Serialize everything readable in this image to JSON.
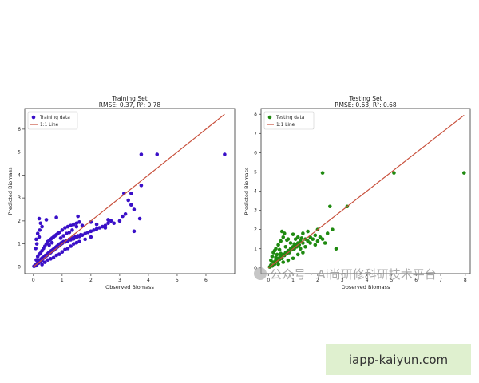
{
  "chart_data": [
    {
      "type": "scatter",
      "title": "Training Set",
      "subtitle": "RMSE: 0.37, R²: 0.78",
      "xlabel": "Observed Biomass",
      "ylabel": "Predicted Biomass",
      "xlim": [
        -0.3,
        7.0
      ],
      "ylim": [
        -0.3,
        6.9
      ],
      "xticks": [
        0,
        1,
        2,
        3,
        4,
        5,
        6
      ],
      "yticks": [
        0,
        1,
        2,
        3,
        4,
        5,
        6
      ],
      "legend_position": "top-left",
      "series": [
        {
          "name": "Training data",
          "kind": "points",
          "color": "#3a10c8",
          "points": [
            [
              0.02,
              0.02
            ],
            [
              0.05,
              0.06
            ],
            [
              0.08,
              0.05
            ],
            [
              0.1,
              0.12
            ],
            [
              0.12,
              0.1
            ],
            [
              0.15,
              0.18
            ],
            [
              0.18,
              0.16
            ],
            [
              0.2,
              0.22
            ],
            [
              0.22,
              0.3
            ],
            [
              0.25,
              0.25
            ],
            [
              0.28,
              0.35
            ],
            [
              0.3,
              0.28
            ],
            [
              0.32,
              0.4
            ],
            [
              0.35,
              0.38
            ],
            [
              0.38,
              0.45
            ],
            [
              0.4,
              0.42
            ],
            [
              0.42,
              0.5
            ],
            [
              0.45,
              0.48
            ],
            [
              0.48,
              0.55
            ],
            [
              0.5,
              0.52
            ],
            [
              0.52,
              0.6
            ],
            [
              0.55,
              0.58
            ],
            [
              0.58,
              0.65
            ],
            [
              0.6,
              0.62
            ],
            [
              0.62,
              0.7
            ],
            [
              0.65,
              0.68
            ],
            [
              0.68,
              0.75
            ],
            [
              0.7,
              0.72
            ],
            [
              0.72,
              0.8
            ],
            [
              0.75,
              0.78
            ],
            [
              0.78,
              0.85
            ],
            [
              0.8,
              0.82
            ],
            [
              0.82,
              0.9
            ],
            [
              0.85,
              0.88
            ],
            [
              0.88,
              0.95
            ],
            [
              0.9,
              0.92
            ],
            [
              0.92,
              1.0
            ],
            [
              0.95,
              0.98
            ],
            [
              0.98,
              1.05
            ],
            [
              1.0,
              1.02
            ],
            [
              1.05,
              1.1
            ],
            [
              1.1,
              1.08
            ],
            [
              1.15,
              1.15
            ],
            [
              1.2,
              1.12
            ],
            [
              1.25,
              1.2
            ],
            [
              1.3,
              1.18
            ],
            [
              1.35,
              1.25
            ],
            [
              1.4,
              1.22
            ],
            [
              1.45,
              1.3
            ],
            [
              1.5,
              1.28
            ],
            [
              1.55,
              1.35
            ],
            [
              1.6,
              1.32
            ],
            [
              1.65,
              1.4
            ],
            [
              1.7,
              1.38
            ],
            [
              1.8,
              1.45
            ],
            [
              1.9,
              1.5
            ],
            [
              2.0,
              1.55
            ],
            [
              2.1,
              1.6
            ],
            [
              2.2,
              1.65
            ],
            [
              2.3,
              1.7
            ],
            [
              2.4,
              1.75
            ],
            [
              2.5,
              1.8
            ],
            [
              2.6,
              1.9
            ],
            [
              2.7,
              2.0
            ],
            [
              0.1,
              0.3
            ],
            [
              0.15,
              0.45
            ],
            [
              0.2,
              0.55
            ],
            [
              0.25,
              0.6
            ],
            [
              0.3,
              0.7
            ],
            [
              0.35,
              0.8
            ],
            [
              0.4,
              0.9
            ],
            [
              0.45,
              1.0
            ],
            [
              0.5,
              1.1
            ],
            [
              0.55,
              1.15
            ],
            [
              0.6,
              1.2
            ],
            [
              0.65,
              1.25
            ],
            [
              0.7,
              1.3
            ],
            [
              0.75,
              1.35
            ],
            [
              0.8,
              1.4
            ],
            [
              0.85,
              1.45
            ],
            [
              0.9,
              1.5
            ],
            [
              1.0,
              1.6
            ],
            [
              1.1,
              1.7
            ],
            [
              1.2,
              1.75
            ],
            [
              1.3,
              1.8
            ],
            [
              1.4,
              1.85
            ],
            [
              1.5,
              1.9
            ],
            [
              1.6,
              1.95
            ],
            [
              0.3,
              0.1
            ],
            [
              0.4,
              0.2
            ],
            [
              0.5,
              0.3
            ],
            [
              0.6,
              0.35
            ],
            [
              0.7,
              0.4
            ],
            [
              0.8,
              0.5
            ],
            [
              0.9,
              0.55
            ],
            [
              1.0,
              0.65
            ],
            [
              1.1,
              0.75
            ],
            [
              1.2,
              0.8
            ],
            [
              1.3,
              0.9
            ],
            [
              1.4,
              1.0
            ],
            [
              1.5,
              1.05
            ],
            [
              1.6,
              1.1
            ],
            [
              1.8,
              1.2
            ],
            [
              2.0,
              1.3
            ],
            [
              0.08,
              0.8
            ],
            [
              0.12,
              1.0
            ],
            [
              0.1,
              1.2
            ],
            [
              0.2,
              1.3
            ],
            [
              0.15,
              1.45
            ],
            [
              0.22,
              1.6
            ],
            [
              0.3,
              1.75
            ],
            [
              0.25,
              1.9
            ],
            [
              0.2,
              2.1
            ],
            [
              0.45,
              2.05
            ],
            [
              0.8,
              2.15
            ],
            [
              1.55,
              2.2
            ],
            [
              1.5,
              1.75
            ],
            [
              1.7,
              1.8
            ],
            [
              2.0,
              1.95
            ],
            [
              2.2,
              1.85
            ],
            [
              2.5,
              1.7
            ],
            [
              2.8,
              1.9
            ],
            [
              3.0,
              2.0
            ],
            [
              3.1,
              2.2
            ],
            [
              3.2,
              2.3
            ],
            [
              3.5,
              2.5
            ],
            [
              3.4,
              2.7
            ],
            [
              3.3,
              2.9
            ],
            [
              2.6,
              2.05
            ],
            [
              3.7,
              2.1
            ],
            [
              3.5,
              1.55
            ],
            [
              3.15,
              3.2
            ],
            [
              3.4,
              3.2
            ],
            [
              3.75,
              3.55
            ],
            [
              3.75,
              4.9
            ],
            [
              4.3,
              4.9
            ],
            [
              6.65,
              4.9
            ],
            [
              0.55,
              0.95
            ],
            [
              0.65,
              1.05
            ],
            [
              0.95,
              1.25
            ],
            [
              1.05,
              1.35
            ],
            [
              1.15,
              1.45
            ],
            [
              1.25,
              1.5
            ],
            [
              1.35,
              1.6
            ]
          ]
        },
        {
          "name": "1:1 Line",
          "kind": "line",
          "color": "#c8503c",
          "points": [
            [
              0,
              0
            ],
            [
              6.65,
              6.65
            ]
          ]
        }
      ]
    },
    {
      "type": "scatter",
      "title": "Testing Set",
      "subtitle": "RMSE: 0.63, R²: 0.68",
      "xlabel": "Observed Biomass",
      "ylabel": "Predicted Biomass",
      "xlim": [
        -0.3,
        8.2
      ],
      "ylim": [
        -0.3,
        8.3
      ],
      "xticks": [
        0,
        1,
        2,
        3,
        4,
        5,
        6,
        7,
        8
      ],
      "yticks": [
        0,
        1,
        2,
        3,
        4,
        5,
        6,
        7,
        8
      ],
      "legend_position": "top-left",
      "series": [
        {
          "name": "Testing data",
          "kind": "points",
          "color": "#1f8a10",
          "points": [
            [
              0.05,
              0.05
            ],
            [
              0.1,
              0.15
            ],
            [
              0.15,
              0.1
            ],
            [
              0.2,
              0.3
            ],
            [
              0.25,
              0.2
            ],
            [
              0.3,
              0.4
            ],
            [
              0.35,
              0.35
            ],
            [
              0.4,
              0.5
            ],
            [
              0.45,
              0.45
            ],
            [
              0.5,
              0.6
            ],
            [
              0.55,
              0.5
            ],
            [
              0.6,
              0.7
            ],
            [
              0.65,
              0.65
            ],
            [
              0.7,
              0.8
            ],
            [
              0.75,
              0.75
            ],
            [
              0.8,
              0.9
            ],
            [
              0.85,
              0.8
            ],
            [
              0.9,
              1.0
            ],
            [
              0.95,
              0.95
            ],
            [
              1.0,
              1.1
            ],
            [
              1.05,
              1.0
            ],
            [
              1.1,
              1.2
            ],
            [
              1.15,
              1.1
            ],
            [
              1.2,
              1.3
            ],
            [
              1.25,
              1.2
            ],
            [
              1.3,
              1.4
            ],
            [
              1.4,
              1.3
            ],
            [
              1.5,
              1.5
            ],
            [
              1.6,
              1.4
            ],
            [
              1.7,
              1.6
            ],
            [
              1.8,
              1.5
            ],
            [
              1.9,
              1.7
            ],
            [
              2.0,
              1.4
            ],
            [
              2.1,
              1.6
            ],
            [
              2.2,
              1.5
            ],
            [
              2.3,
              1.3
            ],
            [
              0.2,
              0.8
            ],
            [
              0.3,
              1.0
            ],
            [
              0.4,
              1.2
            ],
            [
              0.5,
              1.4
            ],
            [
              0.6,
              1.6
            ],
            [
              0.55,
              1.9
            ],
            [
              0.65,
              1.8
            ],
            [
              0.8,
              1.5
            ],
            [
              1.0,
              1.75
            ],
            [
              1.2,
              1.6
            ],
            [
              1.4,
              1.8
            ],
            [
              1.6,
              1.9
            ],
            [
              0.4,
              0.2
            ],
            [
              0.6,
              0.3
            ],
            [
              0.8,
              0.4
            ],
            [
              1.0,
              0.5
            ],
            [
              1.2,
              0.7
            ],
            [
              1.4,
              0.8
            ],
            [
              0.15,
              0.6
            ],
            [
              0.25,
              0.9
            ],
            [
              0.35,
              0.7
            ],
            [
              0.7,
              1.1
            ],
            [
              0.9,
              1.3
            ],
            [
              1.1,
              1.5
            ],
            [
              1.3,
              1.0
            ],
            [
              1.5,
              1.1
            ],
            [
              1.7,
              1.3
            ],
            [
              1.9,
              1.2
            ],
            [
              2.0,
              2.0
            ],
            [
              2.4,
              1.8
            ],
            [
              2.6,
              2.0
            ],
            [
              2.5,
              3.2
            ],
            [
              2.2,
              4.95
            ],
            [
              2.75,
              1.0
            ],
            [
              3.2,
              3.2
            ],
            [
              5.1,
              4.95
            ],
            [
              7.95,
              4.95
            ],
            [
              0.1,
              0.4
            ],
            [
              0.45,
              0.95
            ],
            [
              0.75,
              1.45
            ],
            [
              1.05,
              1.25
            ],
            [
              1.35,
              1.55
            ],
            [
              0.3,
              0.55
            ],
            [
              0.5,
              0.75
            ]
          ]
        },
        {
          "name": "1:1 Line",
          "kind": "line",
          "color": "#c8503c",
          "points": [
            [
              0,
              0
            ],
            [
              7.95,
              7.95
            ]
          ]
        }
      ]
    }
  ],
  "watermark": {
    "text": "公众号 · Ai尚研修科研技术平台"
  },
  "site_badge": {
    "text": "iapp-kaiyun.com"
  }
}
